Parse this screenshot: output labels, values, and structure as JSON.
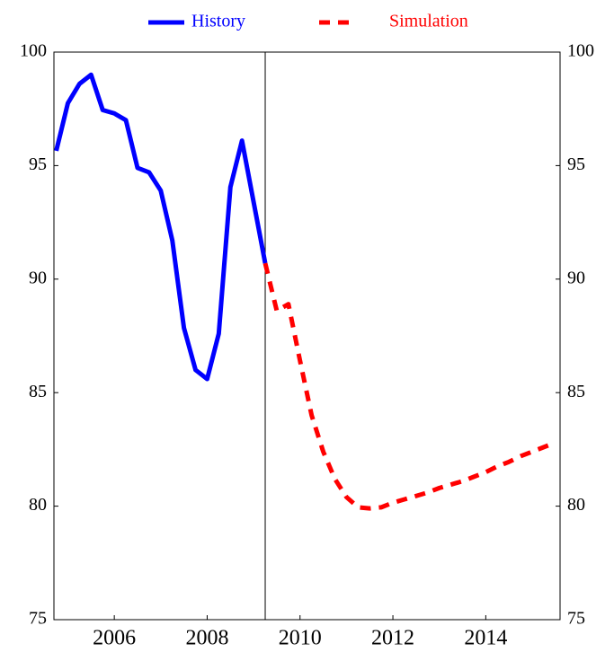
{
  "chart_data": {
    "type": "line",
    "series": [
      {
        "name": "History",
        "color": "#0000ff",
        "dash": "solid",
        "x": [
          2004.75,
          2005.0,
          2005.25,
          2005.5,
          2005.75,
          2006.0,
          2006.25,
          2006.5,
          2006.75,
          2007.0,
          2007.25,
          2007.5,
          2007.75,
          2008.0,
          2008.25,
          2008.5,
          2008.75,
          2009.0,
          2009.25
        ],
        "values": [
          95.65,
          97.75,
          98.6,
          99.0,
          97.45,
          97.3,
          97.0,
          94.9,
          94.7,
          93.9,
          91.7,
          87.85,
          86.0,
          85.6,
          87.6,
          94.05,
          96.1,
          93.4,
          90.7
        ]
      },
      {
        "name": "Simulation",
        "color": "#ff0000",
        "dash": "dashed",
        "x": [
          2009.25,
          2009.5,
          2009.75,
          2010.0,
          2010.25,
          2010.5,
          2010.75,
          2011.0,
          2011.25,
          2011.5,
          2011.75,
          2012.0,
          2012.25,
          2012.5,
          2012.75,
          2013.0,
          2013.25,
          2013.5,
          2013.75,
          2014.0,
          2014.25,
          2014.5,
          2014.75,
          2015.0,
          2015.25,
          2015.5
        ],
        "values": [
          90.7,
          88.6,
          88.9,
          86.4,
          84.0,
          82.4,
          81.2,
          80.4,
          79.95,
          79.9,
          79.95,
          80.15,
          80.3,
          80.45,
          80.6,
          80.8,
          80.95,
          81.1,
          81.3,
          81.5,
          81.75,
          81.95,
          82.2,
          82.4,
          82.6,
          82.8
        ]
      }
    ],
    "xlim": [
      2004.7,
      2015.6
    ],
    "xticks": [
      2006,
      2008,
      2010,
      2012,
      2014
    ],
    "ylim": [
      75,
      100
    ],
    "yticks": [
      75,
      80,
      85,
      90,
      95,
      100
    ],
    "y2lim": [
      75,
      100
    ],
    "y2ticks": [
      75,
      80,
      85,
      90,
      95,
      100
    ],
    "vline": 2009.25,
    "legend": "top",
    "grid": false
  }
}
